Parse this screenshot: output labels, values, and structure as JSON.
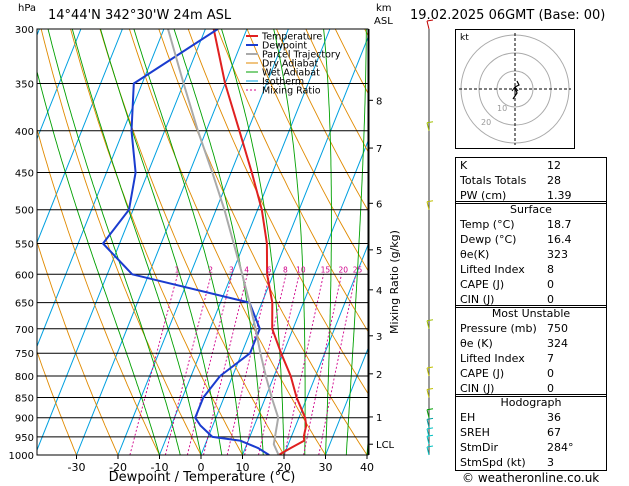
{
  "header": {
    "location": "14°44'N  342°30'W  24m  ASL",
    "datetime": "19.02.2025  06GMT  (Base: 00)",
    "hpa_label": "hPa",
    "km_label": "km",
    "asl_label": "ASL",
    "footer": "© weatheronline.co.uk"
  },
  "chart_data": {
    "type": "line",
    "title": "",
    "xlabel": "Dewpoint / Temperature (°C)",
    "ylabel": "hPa",
    "mixing_ratio_label": "Mixing Ratio (g/kg)",
    "xlim": [
      -35,
      40
    ],
    "ylim": [
      1000,
      300
    ],
    "x_ticks": [
      -30,
      -20,
      -10,
      0,
      10,
      20,
      30,
      40
    ],
    "pressure_levels": [
      300,
      350,
      400,
      450,
      500,
      550,
      600,
      650,
      700,
      750,
      800,
      850,
      900,
      950,
      1000
    ],
    "km_ticks": [
      {
        "km": "8",
        "p": 367
      },
      {
        "km": "7",
        "p": 420
      },
      {
        "km": "6",
        "p": 491
      },
      {
        "km": "5",
        "p": 560
      },
      {
        "km": "4",
        "p": 627
      },
      {
        "km": "3",
        "p": 714
      },
      {
        "km": "2",
        "p": 795
      },
      {
        "km": "1",
        "p": 898
      },
      {
        "km": "LCL",
        "p": 970
      }
    ],
    "mixing_ratio_values": [
      "1",
      "2",
      "3",
      "4",
      "6",
      "8",
      "10",
      "15",
      "20",
      "25"
    ],
    "legend": [
      "Temperature",
      "Dewpoint",
      "Parcel Trajectory",
      "Dry Adiabat",
      "Wet Adiabat",
      "Isotherm",
      "Mixing Ratio"
    ],
    "colors": {
      "temperature": "#e02020",
      "dewpoint": "#1a3ccf",
      "parcel": "#aaaaaa",
      "dry_adiabat": "#e08a00",
      "wet_adiabat": "#00a000",
      "isotherm": "#00a0e0",
      "mixing_ratio": "#d0008a"
    },
    "series": [
      {
        "name": "Temperature",
        "points": [
          [
            1000,
            18.7
          ],
          [
            980,
            21
          ],
          [
            960,
            23.5
          ],
          [
            950,
            23
          ],
          [
            920,
            22.5
          ],
          [
            900,
            21.5
          ],
          [
            850,
            17.5
          ],
          [
            800,
            14
          ],
          [
            750,
            9.5
          ],
          [
            700,
            5
          ],
          [
            650,
            2.5
          ],
          [
            600,
            -1.5
          ],
          [
            550,
            -4.5
          ],
          [
            500,
            -9
          ],
          [
            450,
            -15
          ],
          [
            400,
            -22
          ],
          [
            350,
            -30
          ],
          [
            300,
            -38
          ]
        ]
      },
      {
        "name": "Dewpoint",
        "points": [
          [
            1000,
            16.4
          ],
          [
            980,
            13
          ],
          [
            960,
            8
          ],
          [
            950,
            1
          ],
          [
            920,
            -3
          ],
          [
            900,
            -5
          ],
          [
            850,
            -5
          ],
          [
            800,
            -3
          ],
          [
            750,
            2
          ],
          [
            700,
            2
          ],
          [
            650,
            -3
          ],
          [
            600,
            -34
          ],
          [
            550,
            -44
          ],
          [
            500,
            -41
          ],
          [
            450,
            -43
          ],
          [
            400,
            -48
          ],
          [
            350,
            -52
          ],
          [
            300,
            -37
          ]
        ]
      },
      {
        "name": "Parcel Trajectory",
        "points": [
          [
            1000,
            18.7
          ],
          [
            970,
            16.5
          ],
          [
            900,
            15
          ],
          [
            850,
            11.5
          ],
          [
            800,
            8
          ],
          [
            750,
            4.5
          ],
          [
            700,
            1
          ],
          [
            650,
            -3
          ],
          [
            600,
            -7.5
          ],
          [
            550,
            -12.5
          ],
          [
            500,
            -18
          ],
          [
            450,
            -24.5
          ],
          [
            400,
            -32
          ],
          [
            350,
            -40
          ],
          [
            300,
            -49
          ]
        ]
      }
    ]
  },
  "hodograph": {
    "label": "kt",
    "ring_labels": [
      "10",
      "20"
    ]
  },
  "indices": [
    {
      "label": "K",
      "value": "12"
    },
    {
      "label": "Totals Totals",
      "value": "28"
    },
    {
      "label": "PW (cm)",
      "value": "1.39"
    }
  ],
  "surface": {
    "title": "Surface",
    "rows": [
      {
        "label": "Temp (°C)",
        "value": "18.7"
      },
      {
        "label": "Dewp (°C)",
        "value": "16.4"
      },
      {
        "label": "θe(K)",
        "value": "323"
      },
      {
        "label": "Lifted Index",
        "value": "8"
      },
      {
        "label": "CAPE (J)",
        "value": "0"
      },
      {
        "label": "CIN (J)",
        "value": "0"
      }
    ]
  },
  "most_unstable": {
    "title": "Most Unstable",
    "rows": [
      {
        "label": "Pressure (mb)",
        "value": "750"
      },
      {
        "label": "θe (K)",
        "value": "324"
      },
      {
        "label": "Lifted Index",
        "value": "7"
      },
      {
        "label": "CAPE (J)",
        "value": "0"
      },
      {
        "label": "CIN (J)",
        "value": "0"
      }
    ]
  },
  "hodograph_table": {
    "title": "Hodograph",
    "rows": [
      {
        "label": "EH",
        "value": "36"
      },
      {
        "label": "SREH",
        "value": "67"
      },
      {
        "label": "StmDir",
        "value": "284°"
      },
      {
        "label": "StmSpd (kt)",
        "value": "3"
      }
    ]
  }
}
